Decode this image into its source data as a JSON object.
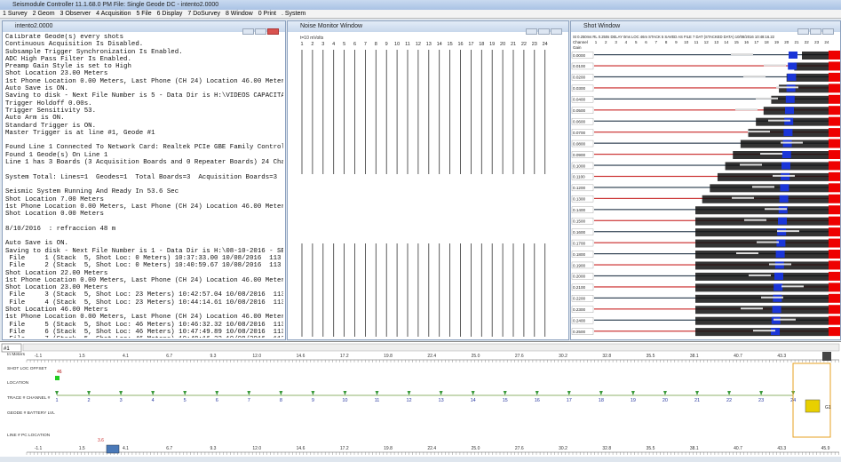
{
  "title_bar": "Seismodule Controller 11.1.68.0 PM  File:  Single Geode DC - intento2.0000",
  "menu": [
    "1 Survey",
    "2 Geom",
    "3 Observer",
    "4 Acquisition",
    "5 File",
    "6 Display",
    "7 DoSurvey",
    "8 Window",
    "0 Print",
    ". System"
  ],
  "log_window": {
    "title": "intento2.0000",
    "blocks": [
      [
        "Calibrate Geode(s) every shots",
        "Continuous Acquisition Is Disabled.",
        "Subsample Trigger Synchronization Is Enabled.",
        "ADC High Pass Filter Is Enabled.",
        "Preamp Gain Style is set to High",
        "Shot Location 23.00 Meters",
        "1st Phone Location 0.00 Meters, Last Phone (CH 24) Location 46.00 Meters",
        "Auto Save is ON.",
        "Saving to disk - Next File Number is 5 - Data Dir is H:\\VIDEOS CAPACITACION",
        "Trigger Holdoff 0.00s.",
        "Trigger Sensitivity 53.",
        "Auto Arm is ON.",
        "Standard Trigger is ON.",
        "Master Trigger is at line #1, Geode #1"
      ],
      [
        "Found Line 1 Connected To Network Card: Realtek PCIe GBE Family Controller",
        "Found 1 Geode(s) On Line 1",
        "Line 1 has 3 Boards (3 Acquisition Boards and 0 Repeater Boards) 24 Channels"
      ],
      [
        "System Total: Lines=1  Geodes=1  Total Boards=3  Acquisition Boards=3  Repea"
      ],
      [
        "Seismic System Running And Ready In 53.6 Sec",
        "Shot Location 7.00 Meters",
        "1st Phone Location 0.00 Meters, Last Phone (CH 24) Location 46.00 Meters",
        "Shot Location 0.00 Meters"
      ],
      [
        "8/10/2016  : refraccion 48 m"
      ],
      [
        "Auto Save is ON.",
        "Saving to disk - Next File Number is 1 - Data Dir is H:\\08-10-2016 - SEG-2 F",
        " File     1 (Stack  5, Shot Loc: 0 Meters) 10:37:33.00 10/08/2016  113 KBy",
        " File     2 (Stack  5, Shot Loc: 0 Meters) 10:40:59.67 10/08/2016  113 KBy",
        "Shot Location 22.00 Meters",
        "1st Phone Location 0.00 Meters, Last Phone (CH 24) Location 46.00 Meters",
        "Shot Location 23.00 Meters",
        " File     3 (Stack  5, Shot Loc: 23 Meters) 10:42:57.04 10/08/2016  113 KB",
        " File     4 (Stack  5, Shot Loc: 23 Meters) 10:44:14.61 10/08/2016  113 KB",
        "Shot Location 46.00 Meters",
        "1st Phone Location 0.00 Meters, Last Phone (CH 24) Location 46.00 Meters",
        " File     5 (Stack  5, Shot Loc: 46 Meters) 10:46:32.32 10/08/2016  113 KB",
        " File     6 (Stack  5, Shot Loc: 46 Meters) 10:47:49.89 10/08/2016  113 KB",
        " File     7 (Stack  5, Shot Loc: 46 Meters) 10:48:16.22 10/08/2016  113 KB"
      ]
    ]
  },
  "noise_window": {
    "title": "Noise Monitor Window",
    "scale": "t=10 mVolts",
    "channels": [
      "1",
      "2",
      "3",
      "4",
      "5",
      "6",
      "7",
      "8",
      "9",
      "10",
      "11",
      "12",
      "13",
      "14",
      "15",
      "16",
      "17",
      "18",
      "19",
      "20",
      "21",
      "22",
      "23",
      "24"
    ]
  },
  "shot_window": {
    "title": "Shot Window",
    "header": "St 0.250ms  RL 0.250s  DELAY 0ms  LOC 46m  STACK 5  SAVED AS FILE 7  DAT (STACKED DATA)  10/08/2016 10:48:16.22",
    "channel_label": "Channel",
    "gain_label": "Gain",
    "channels": [
      "1",
      "2",
      "3",
      "4",
      "5",
      "6",
      "7",
      "8",
      "9",
      "10",
      "11",
      "12",
      "13",
      "14",
      "15",
      "16",
      "17",
      "18",
      "19",
      "20",
      "21",
      "22",
      "23",
      "24"
    ],
    "times": [
      "0.0000",
      "0.0100",
      "0.0200",
      "0.0300",
      "0.0400",
      "0.0500",
      "0.0600",
      "0.0700",
      "0.0800",
      "0.0900",
      "0.1000",
      "0.1100",
      "0.1200",
      "0.1300",
      "0.1400",
      "0.1500",
      "0.1600",
      "0.1700",
      "0.1800",
      "0.1900",
      "0.2000",
      "0.2100",
      "0.2200",
      "0.2300",
      "0.2400",
      "0.2500"
    ]
  },
  "geometry": {
    "selector": "#1",
    "row_labels": [
      "In Meters",
      "SHOT LOC OFFSET",
      "LOCATION",
      "TRACE # CHANNEL #",
      "GEODE # BATTERY LVL",
      "LINE # PC LOCATION"
    ],
    "top_ruler": [
      "-1.1",
      "1.5",
      "4.1",
      "6.7",
      "9.3",
      "12.0",
      "14.6",
      "17.2",
      "19.8",
      "22.4",
      "25.0",
      "27.6",
      "30.2",
      "32.8",
      "35.5",
      "38.1",
      "40.7",
      "43.3"
    ],
    "bottom_ruler": [
      "-1.1",
      "1.5",
      "4.1",
      "6.7",
      "9.3",
      "12.0",
      "14.6",
      "17.2",
      "19.8",
      "22.4",
      "25.0",
      "27.6",
      "30.2",
      "32.8",
      "35.5",
      "38.1",
      "40.7",
      "43.3",
      "45.9"
    ],
    "stations": [
      "1",
      "2",
      "3",
      "4",
      "5",
      "6",
      "7",
      "8",
      "9",
      "10",
      "11",
      "12",
      "13",
      "14",
      "15",
      "16",
      "17",
      "18",
      "19",
      "20",
      "21",
      "22",
      "23",
      "24"
    ],
    "shot_offset": "46",
    "pc_marker": "3.6",
    "geode_label": "G1"
  }
}
